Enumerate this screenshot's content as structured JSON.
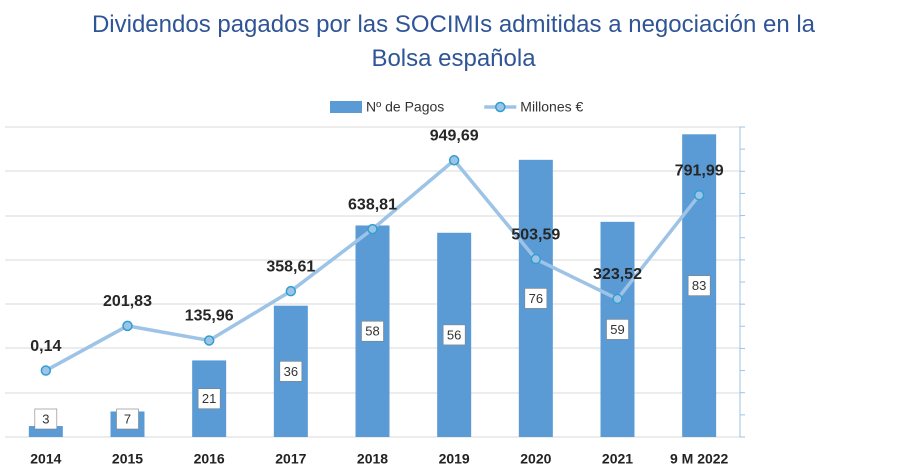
{
  "chart_data": {
    "type": "bar",
    "title": "Dividendos pagados por las SOCIMIs admitidas a negociación en la Bolsa española",
    "categories": [
      "2014",
      "2015",
      "2016",
      "2017",
      "2018",
      "2019",
      "2020",
      "2021",
      "9 M 2022"
    ],
    "series": [
      {
        "name": "Nº de Pagos",
        "type": "bar",
        "color": "#5b9bd5",
        "values": [
          3,
          7,
          21,
          36,
          58,
          56,
          76,
          59,
          83
        ]
      },
      {
        "name": "Millones €",
        "type": "line",
        "axis": "y2",
        "color": "#9dc3e6",
        "values": [
          0.14,
          201.83,
          135.96,
          358.61,
          638.81,
          949.69,
          503.59,
          323.52,
          791.99
        ],
        "value_labels": [
          "0,14",
          "201,83",
          "135,96",
          "358,61",
          "638,81",
          "949,69",
          "503,59",
          "323,52",
          "791,99"
        ]
      }
    ],
    "ylim": [
      0,
      85
    ],
    "y2lim": [
      -300,
      1100
    ],
    "legend": "top"
  }
}
